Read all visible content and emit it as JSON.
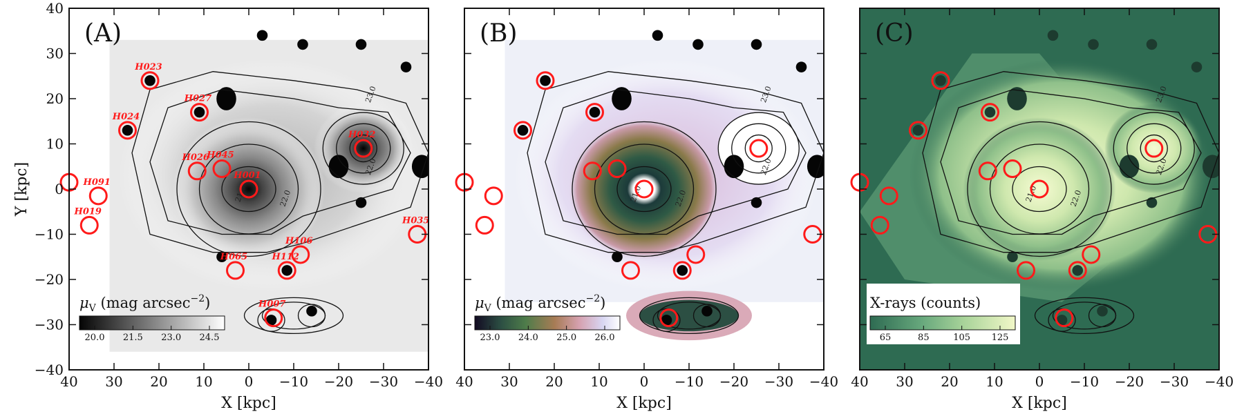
{
  "chart_data": [
    {
      "type": "image",
      "panel_label": "(A)",
      "background": "grayscale",
      "xlabel": "X [kpc]",
      "ylabel": "Y [kpc]",
      "xlim": [
        40,
        -40
      ],
      "ylim": [
        -40,
        40
      ],
      "xticks": [
        40,
        30,
        20,
        10,
        0,
        -10,
        -20,
        -30,
        -40
      ],
      "yticks": [
        40,
        30,
        20,
        10,
        0,
        -10,
        -20,
        -30,
        -40
      ],
      "colorbar": {
        "label": "μ_V (mag arcsec^−2)",
        "label_parts": {
          "symbol": "μ",
          "sub": "V",
          "text": " (mag arcsec",
          "sup": "−2",
          "close": ")"
        },
        "ticks": [
          "20.0",
          "21.5",
          "23.0",
          "24.5"
        ],
        "colors": [
          "#050505",
          "#ffffff"
        ]
      },
      "contour_labels": [
        "23.0",
        "22.0",
        "22.0",
        "21.0"
      ],
      "sources": [
        {
          "label": "H023",
          "x": 22,
          "y": 24
        },
        {
          "label": "H027",
          "x": 11,
          "y": 17
        },
        {
          "label": "H024",
          "x": 27,
          "y": 13
        },
        {
          "label": "H032",
          "x": -25.5,
          "y": 9
        },
        {
          "label": "H026",
          "x": 11.5,
          "y": 4
        },
        {
          "label": "H045",
          "x": 6,
          "y": 4.5
        },
        {
          "label": "H001",
          "x": 0,
          "y": 0
        },
        {
          "label": "H091",
          "x": 33.5,
          "y": -1.5
        },
        {
          "label": "H019",
          "x": 35.5,
          "y": -8
        },
        {
          "label": "H035",
          "x": -37.5,
          "y": -10
        },
        {
          "label": "H106",
          "x": -11.5,
          "y": -14.5
        },
        {
          "label": "H065",
          "x": 3,
          "y": -18
        },
        {
          "label": "H112",
          "x": -8.5,
          "y": -18
        },
        {
          "label": "H007",
          "x": -5.5,
          "y": -28.5
        },
        {
          "label": "",
          "x": 40,
          "y": 1.5
        }
      ]
    },
    {
      "type": "image",
      "panel_label": "(B)",
      "background": "cubehelix",
      "xlabel": "X [kpc]",
      "xlim": [
        40,
        -40
      ],
      "ylim": [
        -40,
        40
      ],
      "xticks": [
        40,
        30,
        20,
        10,
        0,
        -10,
        -20,
        -30,
        -40
      ],
      "colorbar": {
        "label": "μ_V (mag arcsec^−2)",
        "label_parts": {
          "symbol": "μ",
          "sub": "V",
          "text": " (mag arcsec",
          "sup": "−2",
          "close": ")"
        },
        "ticks": [
          "23.0",
          "24.0",
          "25.0",
          "26.0"
        ],
        "colors": [
          "#120a22",
          "#2c4f43",
          "#4e7c4a",
          "#a77c55",
          "#d6a1b0",
          "#d8d6f2",
          "#ffffff"
        ]
      },
      "contour_labels": [
        "23.0",
        "22.0",
        "22.0",
        "21.0"
      ]
    },
    {
      "type": "image",
      "panel_label": "(C)",
      "background": "green-yellow",
      "xlabel": "X [kpc]",
      "xlim": [
        40,
        -40
      ],
      "ylim": [
        -40,
        40
      ],
      "xticks": [
        40,
        30,
        20,
        10,
        0,
        -10,
        -20,
        -30,
        -40
      ],
      "colorbar": {
        "label": "X-rays (counts)",
        "ticks": [
          "65",
          "85",
          "105",
          "125"
        ],
        "colors": [
          "#2e6b52",
          "#66a77c",
          "#a9d49a",
          "#f2f8c8"
        ]
      },
      "contour_labels": [
        "23.0",
        "22.0",
        "22.0",
        "21.0"
      ]
    }
  ]
}
